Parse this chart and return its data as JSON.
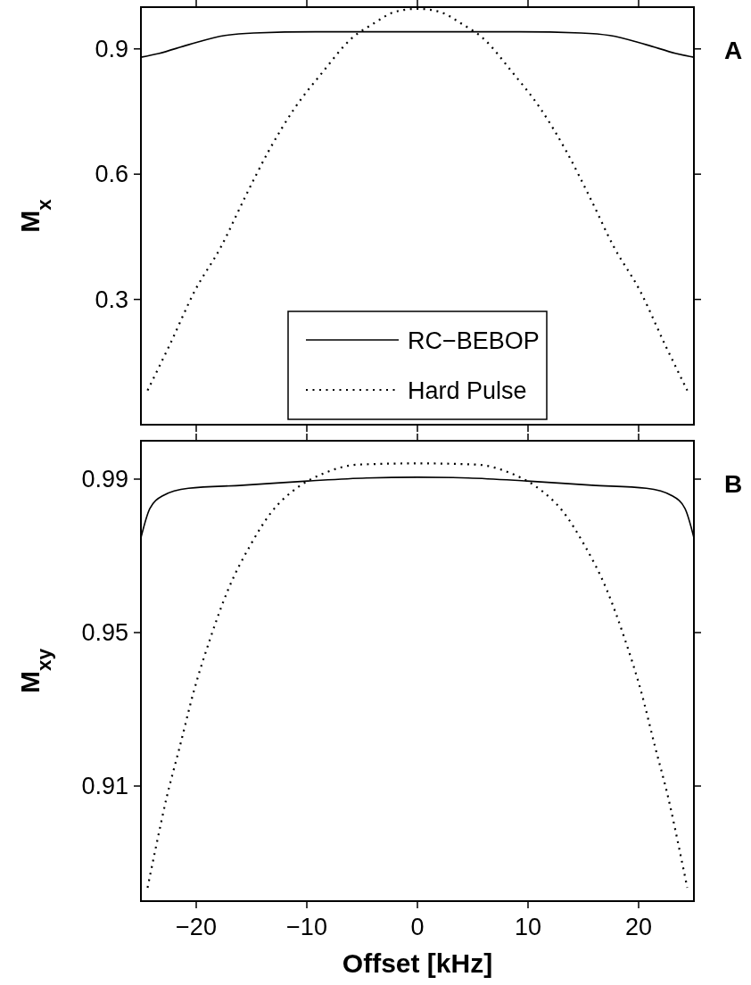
{
  "chart_data": [
    {
      "type": "line",
      "ylabel": "M$_{x}$",
      "xlim": [
        -25,
        25
      ],
      "xticks": [
        -20,
        -10,
        0,
        10,
        20
      ],
      "ylim": [
        0,
        1
      ],
      "yticks": [
        0.3,
        0.6,
        0.9
      ],
      "tick_labels": "y",
      "legend": "bottom",
      "annotations": [
        "A"
      ],
      "series": [
        {
          "name": "RC−BEBOP",
          "color": "#000000",
          "line_style": "solid",
          "x": [
            -25,
            -23.4,
            -20.7,
            -17.4,
            -14.8,
            -9.2,
            0,
            9.2,
            14.8,
            17.4,
            20.7,
            23.4,
            25
          ],
          "values": [
            0.88,
            0.889,
            0.91,
            0.932,
            0.938,
            0.941,
            0.941,
            0.941,
            0.938,
            0.932,
            0.91,
            0.889,
            0.88
          ]
        },
        {
          "name": "Hard Pulse",
          "color": "#000000",
          "line_style": "dotted",
          "x": [
            -24.4,
            -22.4,
            -20.1,
            -17.8,
            -15.6,
            -13.5,
            -11.1,
            -8.55,
            -6,
            -3.95,
            -2,
            0,
            2,
            3.95,
            6,
            8.55,
            11.1,
            13.5,
            15.6,
            17.8,
            20.1,
            22.4,
            24.4
          ],
          "values": [
            0.082,
            0.191,
            0.322,
            0.424,
            0.544,
            0.653,
            0.758,
            0.845,
            0.924,
            0.961,
            0.989,
            0.996,
            0.989,
            0.961,
            0.924,
            0.845,
            0.758,
            0.653,
            0.544,
            0.424,
            0.322,
            0.191,
            0.082
          ]
        }
      ]
    },
    {
      "type": "line",
      "ylabel": "M$_{xy}$",
      "xlabel": "Offset [kHz]",
      "xlim": [
        -25,
        25
      ],
      "xticks": [
        {
          "value": -20,
          "label": "−20"
        },
        {
          "value": -10,
          "label": "−10"
        },
        0,
        10,
        20
      ],
      "ylim": [
        0.88,
        1
      ],
      "yticks": [
        0.91,
        0.95,
        0.99
      ],
      "annotations": [
        "B"
      ],
      "series": [
        {
          "color": "#000000",
          "line_style": "solid",
          "x": [
            -25,
            -24.2,
            -23,
            -20.7,
            -15.8,
            -9.9,
            -4.6,
            0,
            4.6,
            9.9,
            15.8,
            20.7,
            23,
            24.2,
            25
          ],
          "values": [
            0.9747,
            0.9823,
            0.9857,
            0.9876,
            0.9884,
            0.9895,
            0.9903,
            0.9905,
            0.9903,
            0.9895,
            0.9884,
            0.9876,
            0.9857,
            0.9823,
            0.9747
          ]
        },
        {
          "color": "#000000",
          "line_style": "dotted",
          "x": [
            -24.4,
            -23.7,
            -22.7,
            -21.5,
            -20.2,
            -18.75,
            -17.1,
            -15.1,
            -13.2,
            -10.7,
            -8.55,
            -5.3,
            0,
            5.3,
            8.55,
            10.7,
            13.2,
            15.1,
            17.1,
            18.75,
            20.2,
            21.5,
            22.7,
            23.7,
            24.4
          ],
          "values": [
            0.8835,
            0.8933,
            0.9067,
            0.9201,
            0.9349,
            0.9483,
            0.9613,
            0.9728,
            0.9814,
            0.9881,
            0.9914,
            0.9938,
            0.9941,
            0.9938,
            0.9914,
            0.9881,
            0.9814,
            0.9728,
            0.9613,
            0.9483,
            0.9349,
            0.9201,
            0.9067,
            0.8933,
            0.8835
          ]
        }
      ]
    }
  ]
}
